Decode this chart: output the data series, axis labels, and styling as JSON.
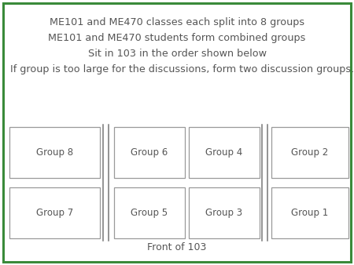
{
  "title_lines": [
    "ME101 and ME470 classes each split into 8 groups",
    "ME101 and ME470 students form combined groups",
    "Sit in 103 in the order shown below",
    "If group is too large for the discussions, form two discussion groups."
  ],
  "title_center": [
    true,
    true,
    true,
    false
  ],
  "bottom_label": "Front of 103",
  "border_color": "#3a8a3a",
  "text_color": "#555555",
  "box_edge_color": "#999999",
  "background_color": "#ffffff",
  "groups": [
    {
      "label": "Group 8",
      "row": 0,
      "col": 0
    },
    {
      "label": "Group 7",
      "row": 1,
      "col": 0
    },
    {
      "label": "Group 6",
      "row": 0,
      "col": 1
    },
    {
      "label": "Group 5",
      "row": 1,
      "col": 1
    },
    {
      "label": "Group 4",
      "row": 0,
      "col": 2
    },
    {
      "label": "Group 3",
      "row": 1,
      "col": 2
    },
    {
      "label": "Group 2",
      "row": 0,
      "col": 3
    },
    {
      "label": "Group 1",
      "row": 1,
      "col": 3
    }
  ],
  "font_size_text": 9.2,
  "font_size_box": 8.5,
  "font_size_bottom": 9.0,
  "fig_width": 4.5,
  "fig_height": 3.38,
  "dpi": 100
}
